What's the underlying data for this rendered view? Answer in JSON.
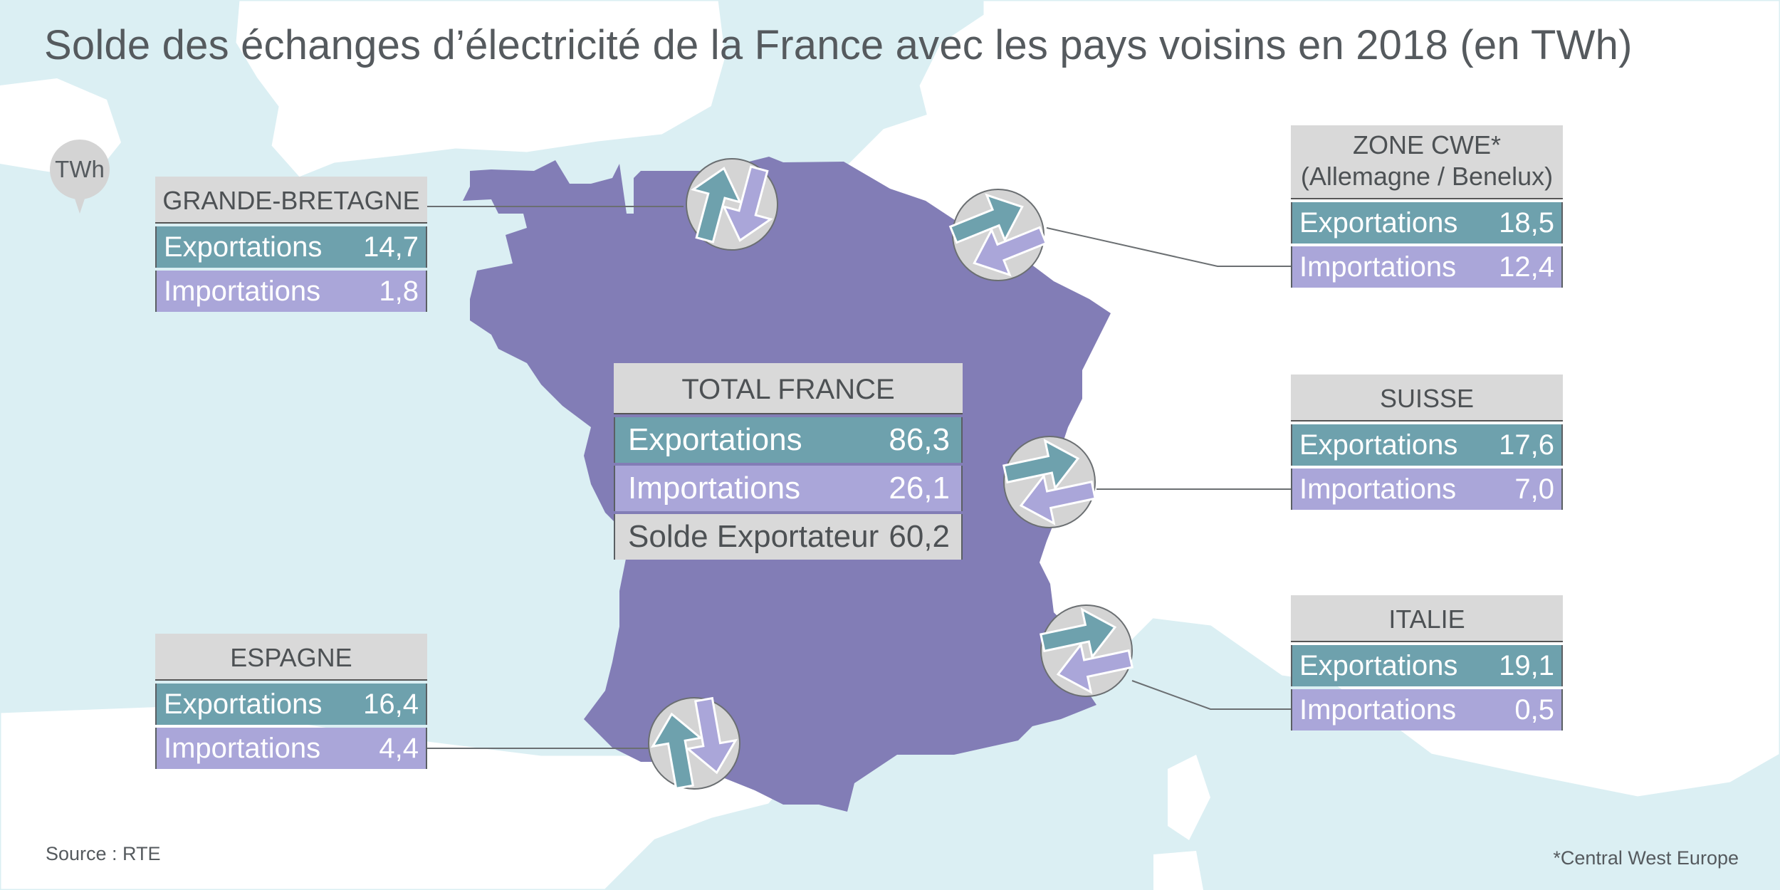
{
  "title": "Solde des échanges d’électricité de la France avec les pays voisins en 2018 (en TWh)",
  "unit_badge": "TWh",
  "source": "Source : RTE",
  "footnote": "*Central West Europe",
  "colors": {
    "sea": "#dbeff3",
    "land": "#ffffff",
    "france": "#827db6",
    "exportations": "#6ea1ad",
    "importations": "#aaa6d9",
    "header": "#d9d9d9",
    "text": "#555a5e"
  },
  "label_exportations": "Exportations",
  "label_importations": "Importations",
  "total": {
    "header": "TOTAL FRANCE",
    "exportations": "86,3",
    "importations": "26,1",
    "solde_label": "Solde Exportateur",
    "solde_value": "60,2"
  },
  "countries": {
    "gb": {
      "name": "GRANDE-BRETAGNE",
      "exportations": "14,7",
      "importations": "1,8"
    },
    "cwe": {
      "name": "ZONE CWE*",
      "subtitle": "(Allemagne / Benelux)",
      "exportations": "18,5",
      "importations": "12,4"
    },
    "ch": {
      "name": "SUISSE",
      "exportations": "17,6",
      "importations": "7,0"
    },
    "it": {
      "name": "ITALIE",
      "exportations": "19,1",
      "importations": "0,5"
    },
    "es": {
      "name": "ESPAGNE",
      "exportations": "16,4",
      "importations": "4,4"
    }
  }
}
